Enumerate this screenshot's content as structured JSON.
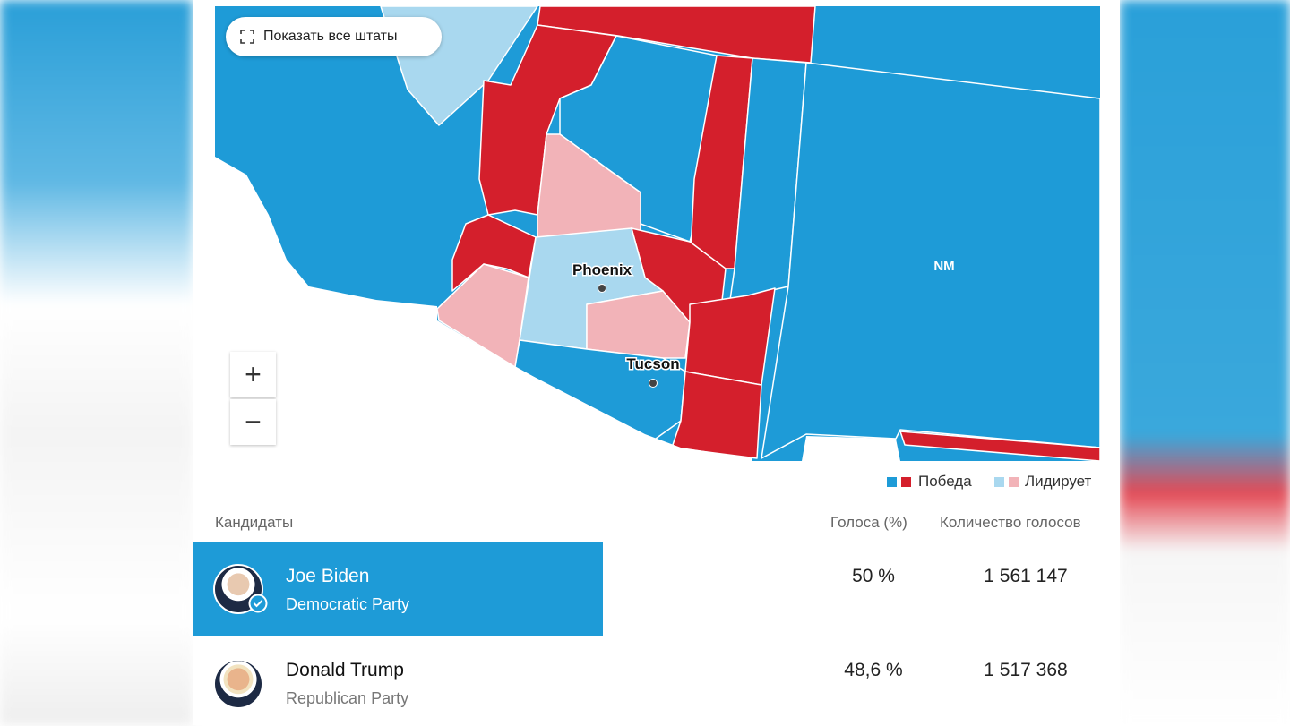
{
  "map": {
    "button": "Показать все штаты",
    "zoom_in": "+",
    "zoom_out": "−",
    "labels": [
      "Phoenix",
      "Tucson",
      "NM"
    ],
    "legend": [
      "Победа",
      "Лидирует"
    ]
  },
  "table": {
    "headers": [
      "Кандидаты",
      "Голоса (%)",
      "Количество голосов"
    ],
    "rows": [
      [
        "Joe Biden",
        "Democratic Party",
        "50 %",
        "1 561 147"
      ],
      [
        "Donald Trump",
        "Republican Party",
        "48,6 %",
        "1 517 368"
      ]
    ]
  }
}
